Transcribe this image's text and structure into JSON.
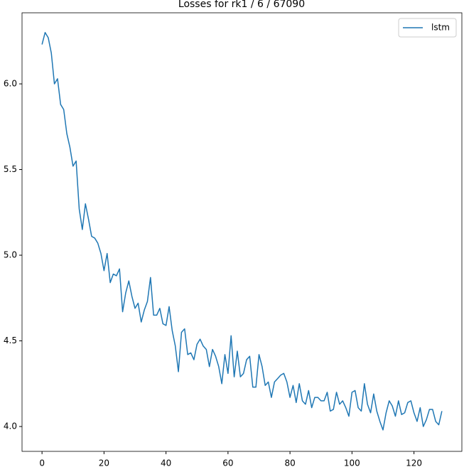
{
  "chart_data": {
    "type": "line",
    "title": "Losses for rk1 / 6 / 67090",
    "x": [
      0,
      1,
      2,
      3,
      4,
      5,
      6,
      7,
      8,
      9,
      10,
      11,
      12,
      13,
      14,
      15,
      16,
      17,
      18,
      19,
      20,
      21,
      22,
      23,
      24,
      25,
      26,
      27,
      28,
      29,
      30,
      31,
      32,
      33,
      34,
      35,
      36,
      37,
      38,
      39,
      40,
      41,
      42,
      43,
      44,
      45,
      46,
      47,
      48,
      49,
      50,
      51,
      52,
      53,
      54,
      55,
      56,
      57,
      58,
      59,
      60,
      61,
      62,
      63,
      64,
      65,
      66,
      67,
      68,
      69,
      70,
      71,
      72,
      73,
      74,
      75,
      76,
      77,
      78,
      79,
      80,
      81,
      82,
      83,
      84,
      85,
      86,
      87,
      88,
      89,
      90,
      91,
      92,
      93,
      94,
      95,
      96,
      97,
      98,
      99,
      100,
      101,
      102,
      103,
      104,
      105,
      106,
      107,
      108,
      109,
      110,
      111,
      112,
      113,
      114,
      115,
      116,
      117,
      118,
      119,
      120,
      121,
      122,
      123,
      124,
      125,
      126,
      127,
      128,
      129
    ],
    "series": [
      {
        "name": "lstm",
        "color": "#1f77b4",
        "values": [
          6.23,
          6.3,
          6.27,
          6.18,
          6.0,
          6.03,
          5.88,
          5.85,
          5.71,
          5.63,
          5.52,
          5.55,
          5.27,
          5.15,
          5.3,
          5.21,
          5.11,
          5.1,
          5.07,
          5.01,
          4.91,
          5.01,
          4.84,
          4.89,
          4.88,
          4.92,
          4.67,
          4.78,
          4.85,
          4.76,
          4.69,
          4.72,
          4.61,
          4.68,
          4.73,
          4.87,
          4.65,
          4.65,
          4.69,
          4.6,
          4.59,
          4.7,
          4.56,
          4.47,
          4.32,
          4.55,
          4.57,
          4.42,
          4.43,
          4.39,
          4.48,
          4.51,
          4.47,
          4.45,
          4.35,
          4.45,
          4.41,
          4.35,
          4.25,
          4.42,
          4.31,
          4.53,
          4.29,
          4.44,
          4.29,
          4.31,
          4.39,
          4.41,
          4.23,
          4.23,
          4.42,
          4.35,
          4.24,
          4.26,
          4.17,
          4.26,
          4.28,
          4.3,
          4.31,
          4.26,
          4.17,
          4.24,
          4.14,
          4.25,
          4.15,
          4.13,
          4.21,
          4.11,
          4.17,
          4.17,
          4.15,
          4.15,
          4.2,
          4.09,
          4.1,
          4.2,
          4.13,
          4.15,
          4.11,
          4.06,
          4.2,
          4.21,
          4.11,
          4.09,
          4.25,
          4.13,
          4.08,
          4.19,
          4.09,
          4.03,
          3.98,
          4.08,
          4.15,
          4.12,
          4.06,
          4.15,
          4.07,
          4.08,
          4.14,
          4.15,
          4.08,
          4.03,
          4.11,
          4.0,
          4.04,
          4.1,
          4.1,
          4.03,
          4.01,
          4.09
        ]
      }
    ],
    "xlim": [
      -6.45,
      135.45
    ],
    "xticks": [
      0,
      20,
      40,
      60,
      80,
      100,
      120
    ],
    "ylim": [
      3.855,
      6.415
    ],
    "yticks": [
      {
        "value": 4,
        "label": "4.0"
      },
      4.5,
      {
        "value": 5,
        "label": "5.0"
      },
      5.5,
      {
        "value": 6,
        "label": "6.0"
      }
    ],
    "legend": "upper right"
  }
}
